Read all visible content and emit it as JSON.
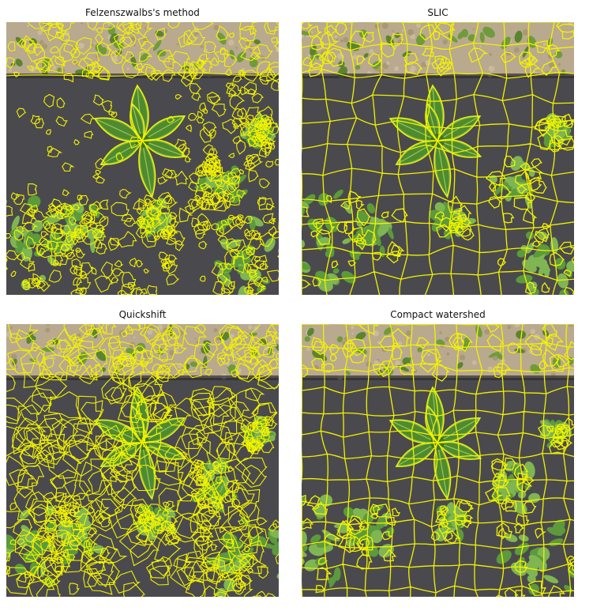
{
  "figure": {
    "panels": [
      {
        "title": "Felzenszwalbs's method",
        "method": "felzenszwalb",
        "density": "irregular-dense"
      },
      {
        "title": "SLIC",
        "method": "slic",
        "density": "regular-grid"
      },
      {
        "title": "Quickshift",
        "method": "quickshift",
        "density": "irregular-medium"
      },
      {
        "title": "Compact watershed",
        "method": "compact-watershed",
        "density": "regular-grid"
      }
    ]
  },
  "colors": {
    "boundary": "#f2f200",
    "mulch": "#4a4a4e",
    "soil": "#b9a98e",
    "leaf": "#4f8a2e",
    "leaf_light": "#8fc24a",
    "background": "#ffffff"
  }
}
